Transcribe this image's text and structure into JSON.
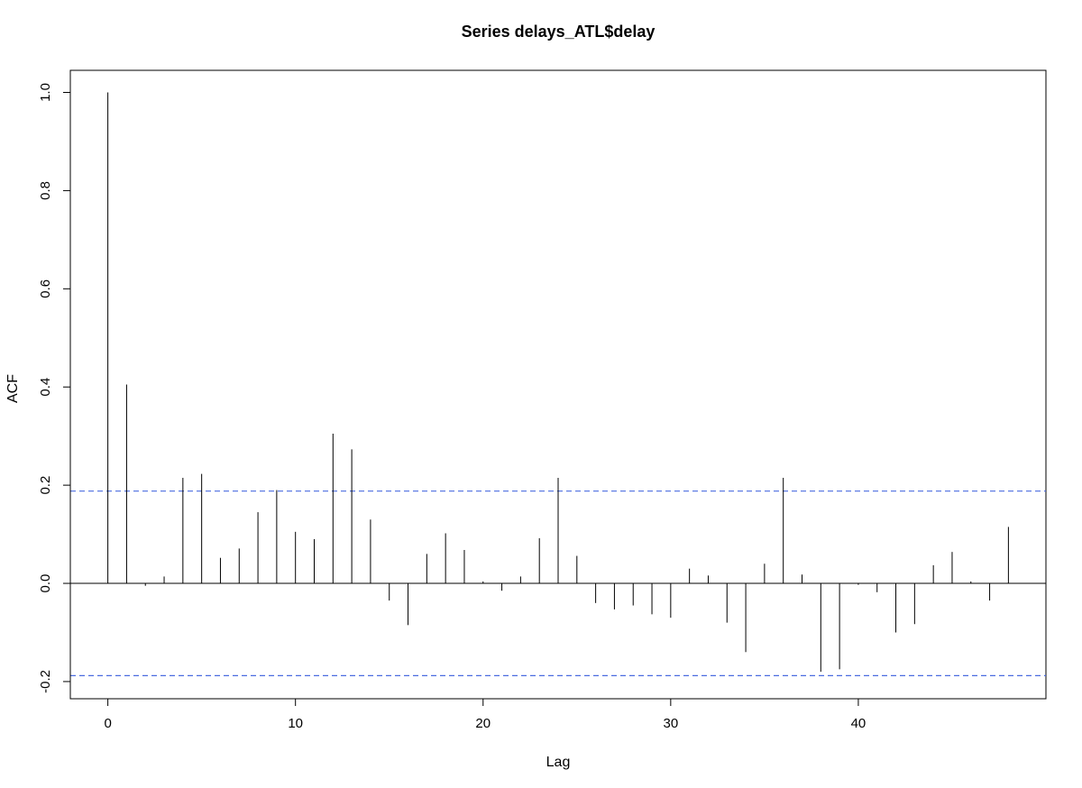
{
  "chart_data": {
    "type": "bar",
    "title": "Series  delays_ATL$delay",
    "xlabel": "Lag",
    "ylabel": "ACF",
    "xlim": [
      -2,
      50
    ],
    "ylim": [
      -0.235,
      1.045
    ],
    "xticks": [
      0,
      10,
      20,
      30,
      40
    ],
    "yticks": [
      -0.2,
      0.0,
      0.2,
      0.4,
      0.6,
      0.8,
      1.0
    ],
    "ytick_labels": [
      "-0.2",
      "0.0",
      "0.2",
      "0.4",
      "0.6",
      "0.8",
      "1.0"
    ],
    "grid": false,
    "legend": "none",
    "lags": [
      0,
      1,
      2,
      3,
      4,
      5,
      6,
      7,
      8,
      9,
      10,
      11,
      12,
      13,
      14,
      15,
      16,
      17,
      18,
      19,
      20,
      21,
      22,
      23,
      24,
      25,
      26,
      27,
      28,
      29,
      30,
      31,
      32,
      33,
      34,
      35,
      36,
      37,
      38,
      39,
      40,
      41,
      42,
      43,
      44,
      45,
      46,
      47,
      48
    ],
    "acf": [
      1.0,
      0.405,
      -0.005,
      0.014,
      0.215,
      0.223,
      0.052,
      0.071,
      0.145,
      0.19,
      0.105,
      0.09,
      0.305,
      0.273,
      0.13,
      -0.035,
      -0.085,
      0.06,
      0.102,
      0.068,
      0.004,
      -0.015,
      0.014,
      0.092,
      0.215,
      0.056,
      -0.04,
      -0.053,
      -0.045,
      -0.063,
      -0.07,
      0.03,
      0.016,
      -0.08,
      -0.14,
      0.04,
      0.215,
      0.018,
      -0.18,
      -0.175,
      -0.003,
      -0.018,
      -0.1,
      -0.083,
      0.037,
      0.064,
      0.004,
      -0.035,
      0.115
    ],
    "confidence_bound": 0.188,
    "colors": {
      "spike": "#000000",
      "bound": "#4a6ce0",
      "axis": "#000000"
    }
  }
}
